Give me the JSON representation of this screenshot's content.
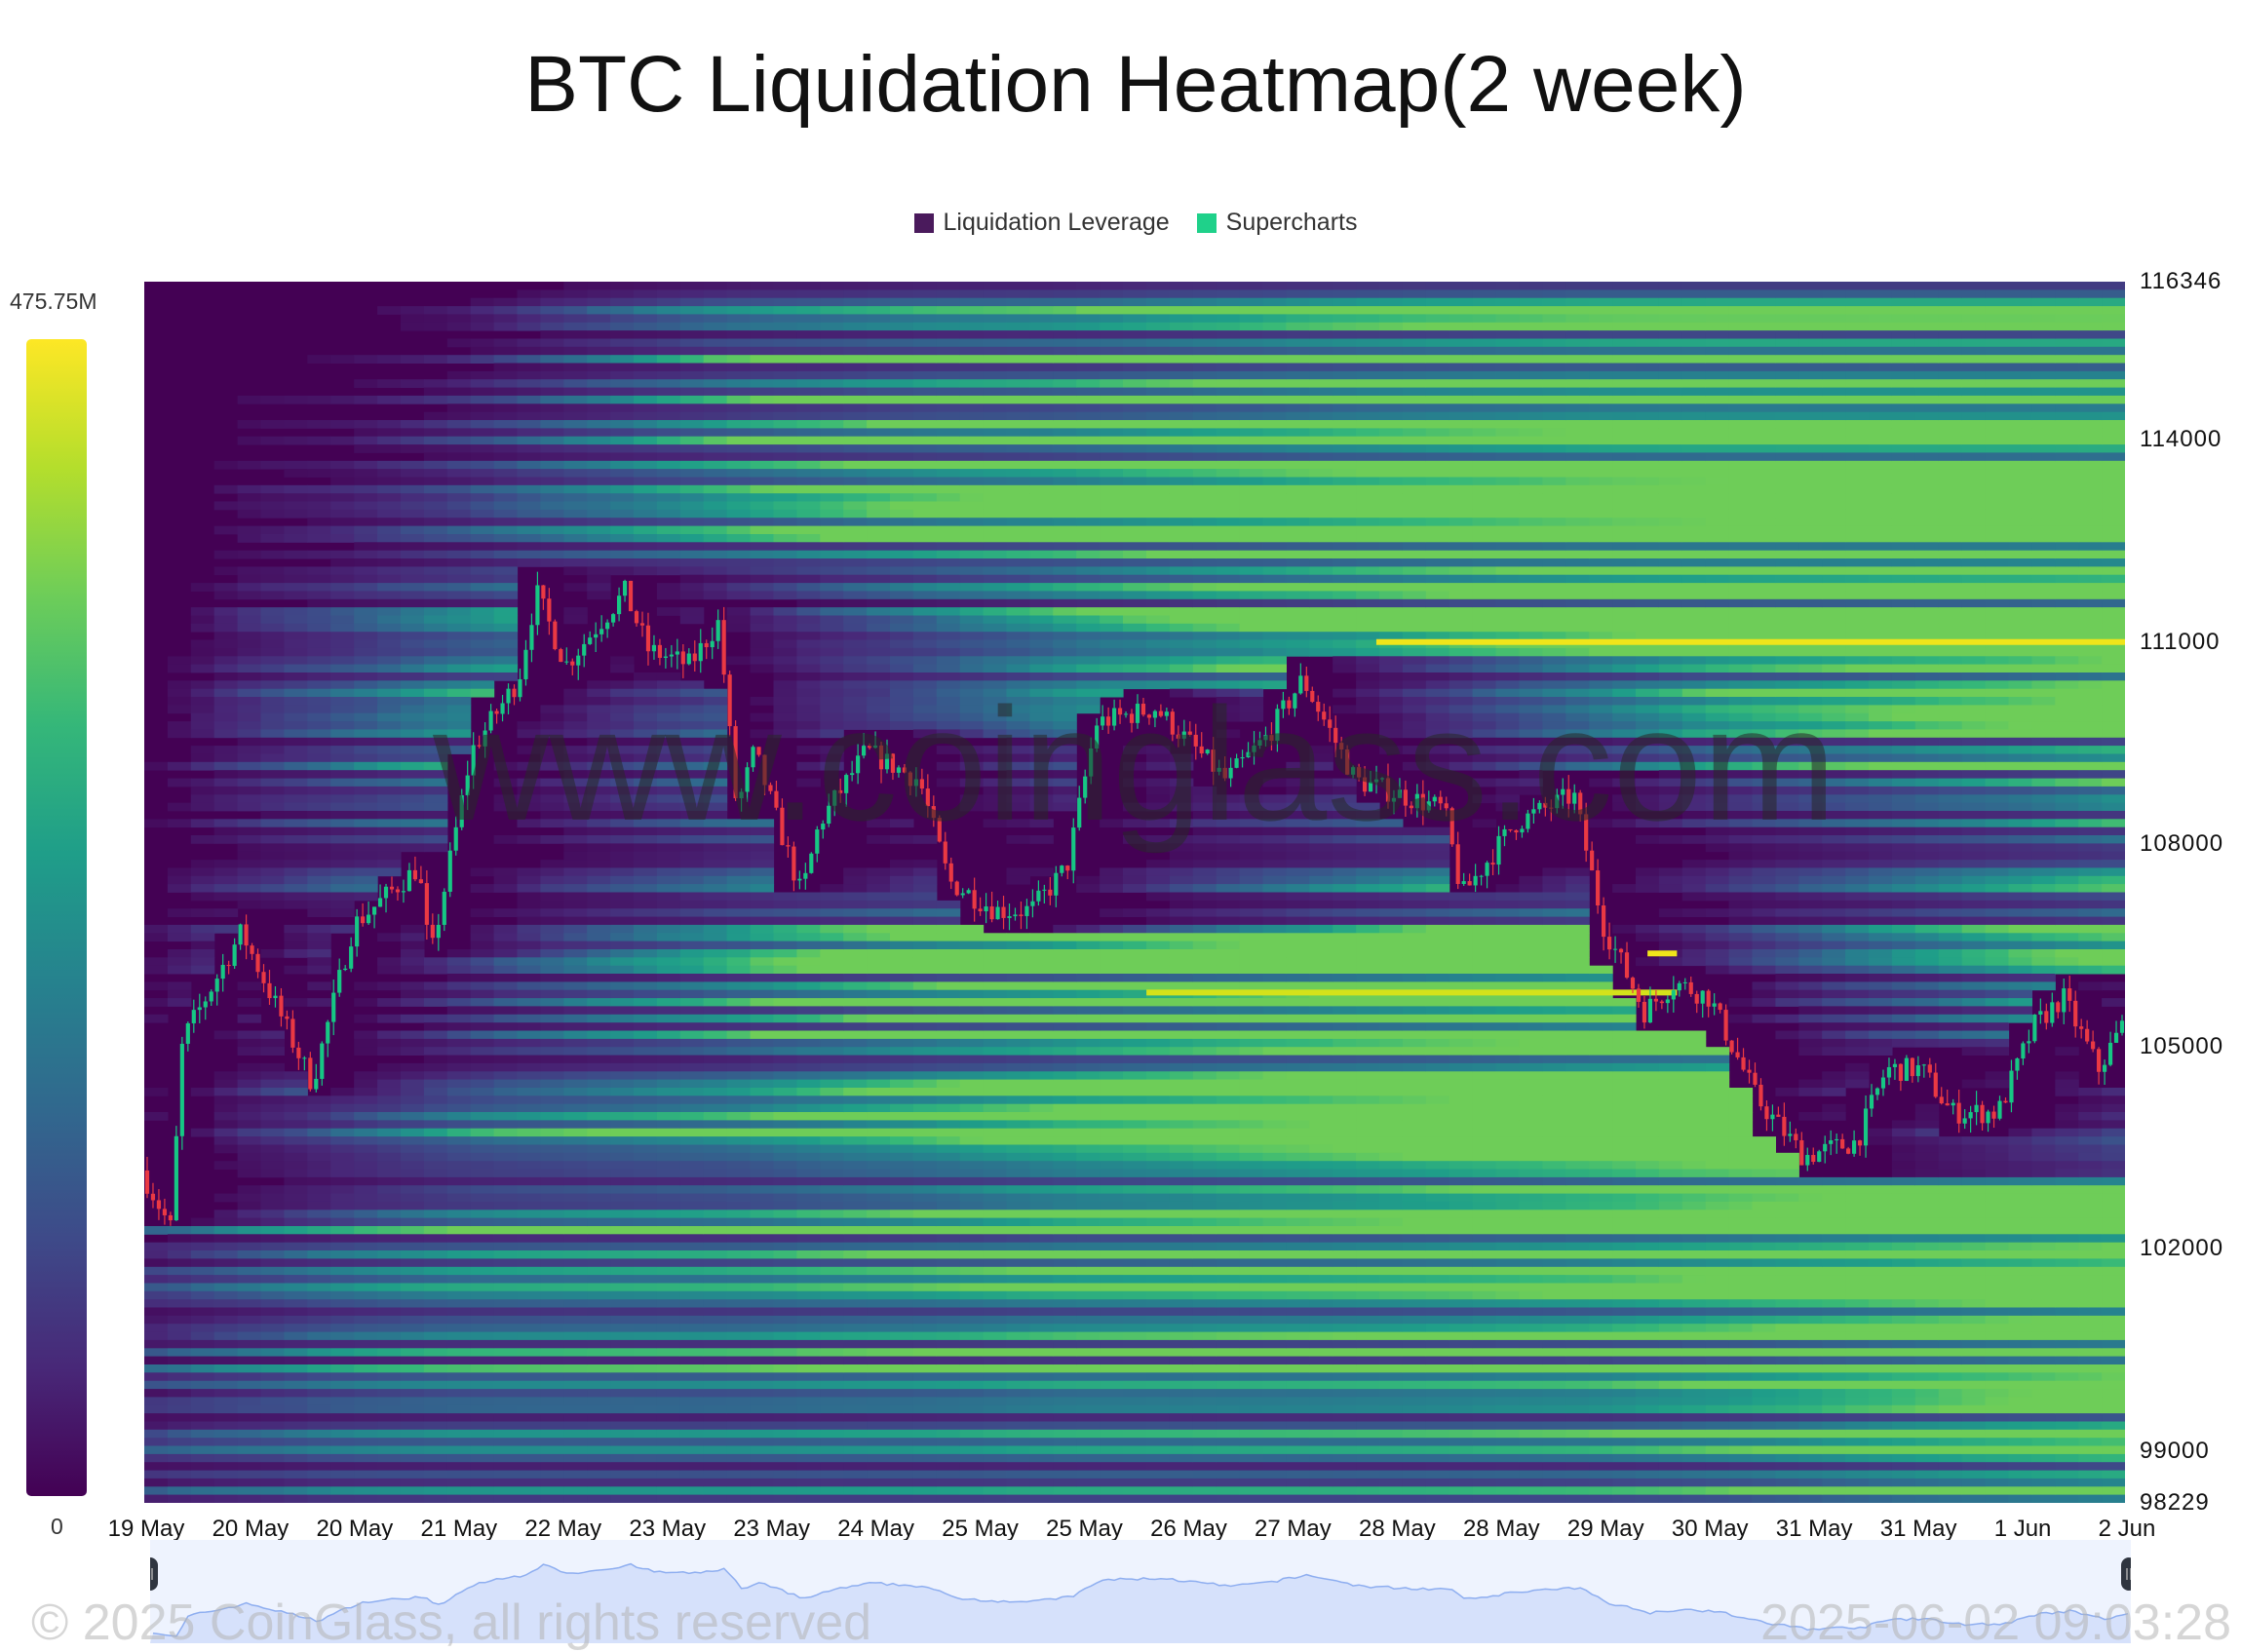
{
  "title": "BTC Liquidation Heatmap(2 week)",
  "legend": [
    {
      "label": "Liquidation Leverage",
      "color": "#4a1a5c"
    },
    {
      "label": "Supercharts",
      "color": "#1fd18a"
    }
  ],
  "colorbar": {
    "max_label": "475.75M",
    "min_label": "0",
    "colormap": "viridis"
  },
  "watermark": "www.coinglass.com",
  "footer": {
    "copyright": "© 2025 CoinGlass, all rights reserved",
    "timestamp": "2025-06-02 09:03:28"
  },
  "chart_data": {
    "type": "heatmap",
    "title": "BTC Liquidation Heatmap(2 week)",
    "y_axis": {
      "position": "right",
      "range": [
        98229,
        116346
      ],
      "ticks": [
        116346,
        114000,
        111000,
        108000,
        105000,
        102000,
        99000,
        98229
      ]
    },
    "x_axis": {
      "range": [
        "2025-05-19 09:00",
        "2025-06-02 09:00"
      ],
      "tick_labels": [
        "19 May",
        "20 May",
        "20 May",
        "21 May",
        "22 May",
        "23 May",
        "23 May",
        "24 May",
        "25 May",
        "25 May",
        "26 May",
        "27 May",
        "28 May",
        "28 May",
        "29 May",
        "30 May",
        "31 May",
        "31 May",
        "1 Jun",
        "2 Jun"
      ]
    },
    "value_range": [
      0,
      475750000
    ],
    "candle_colors": {
      "up": "#16c784",
      "down": "#ea3943"
    },
    "notable_levels": [
      {
        "price": 111000,
        "from": "2025-05-28 02:00",
        "to": "2025-06-02 09:00",
        "color": "#f0e51a"
      },
      {
        "price": 105800,
        "from": "2025-05-26 11:00",
        "to": "2025-05-30 05:00",
        "color": "#d4e21a"
      },
      {
        "price": 106380,
        "from": "2025-05-30 00:00",
        "to": "2025-05-30 05:00",
        "color": "#f0e51a"
      }
    ],
    "price_path": [
      [
        "2025-05-19 09:00",
        103160
      ],
      [
        "2025-05-19 14:00",
        102300
      ],
      [
        "2025-05-19 16:00",
        105090
      ],
      [
        "2025-05-20 02:00",
        106700
      ],
      [
        "2025-05-20 10:00",
        105200
      ],
      [
        "2025-05-20 14:00",
        104450
      ],
      [
        "2025-05-20 21:00",
        106800
      ],
      [
        "2025-05-21 08:00",
        107660
      ],
      [
        "2025-05-21 10:00",
        106270
      ],
      [
        "2025-05-21 17:00",
        109380
      ],
      [
        "2025-05-22 01:00",
        110450
      ],
      [
        "2025-05-22 04:00",
        111740
      ],
      [
        "2025-05-22 09:00",
        110660
      ],
      [
        "2025-05-22 19:00",
        111740
      ],
      [
        "2025-05-22 23:00",
        110880
      ],
      [
        "2025-05-23 06:00",
        110660
      ],
      [
        "2025-05-23 11:00",
        111300
      ],
      [
        "2025-05-23 14:00",
        108520
      ],
      [
        "2025-05-23 17:00",
        109380
      ],
      [
        "2025-05-24 01:00",
        107240
      ],
      [
        "2025-05-24 04:00",
        108310
      ],
      [
        "2025-05-24 12:00",
        109380
      ],
      [
        "2025-05-24 21:00",
        108950
      ],
      [
        "2025-05-25 02:00",
        107450
      ],
      [
        "2025-05-25 10:00",
        107020
      ],
      [
        "2025-05-25 16:00",
        107020
      ],
      [
        "2025-05-25 22:00",
        107660
      ],
      [
        "2025-05-26 03:00",
        109800
      ],
      [
        "2025-05-26 13:00",
        110020
      ],
      [
        "2025-05-27 01:00",
        108950
      ],
      [
        "2025-05-27 08:00",
        109600
      ],
      [
        "2025-05-27 14:00",
        110450
      ],
      [
        "2025-05-27 23:00",
        108950
      ],
      [
        "2025-05-28 14:00",
        108520
      ],
      [
        "2025-05-28 17:00",
        107240
      ],
      [
        "2025-05-29 02:00",
        108310
      ],
      [
        "2025-05-29 12:00",
        108730
      ],
      [
        "2025-05-29 17:00",
        106800
      ],
      [
        "2025-05-30 00:00",
        105520
      ],
      [
        "2025-05-30 05:00",
        105950
      ],
      [
        "2025-05-30 11:00",
        105730
      ],
      [
        "2025-05-30 19:00",
        104230
      ],
      [
        "2025-05-31 03:00",
        103370
      ],
      [
        "2025-05-31 12:00",
        103590
      ],
      [
        "2025-05-31 17:00",
        104660
      ],
      [
        "2025-05-31 23:00",
        104660
      ],
      [
        "2025-06-01 04:00",
        104020
      ],
      [
        "2025-06-01 12:00",
        104020
      ],
      [
        "2025-06-01 18:00",
        105300
      ],
      [
        "2025-06-01 23:00",
        105730
      ],
      [
        "2025-06-02 05:00",
        104660
      ],
      [
        "2025-06-02 09:00",
        105300
      ]
    ]
  }
}
